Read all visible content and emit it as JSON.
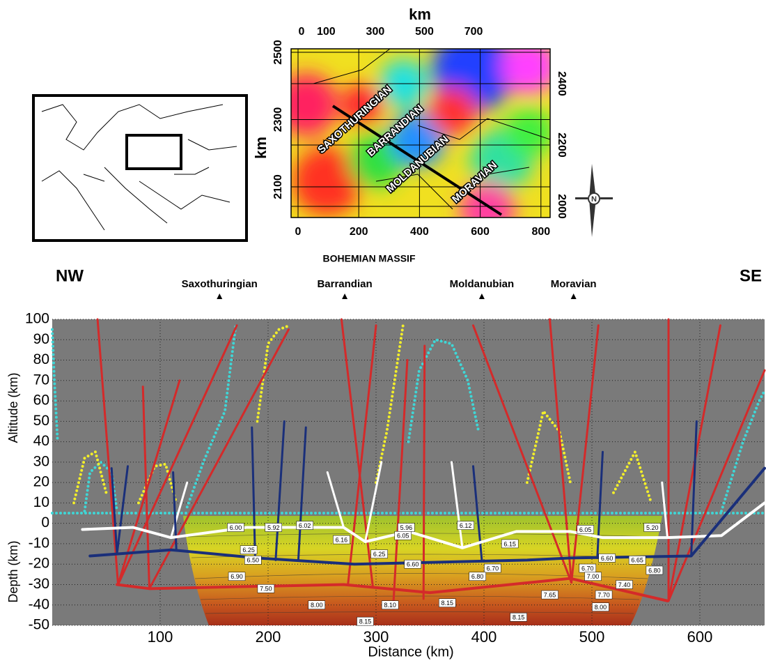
{
  "map": {
    "top_label": "km",
    "top_ticks": [
      0,
      100,
      300,
      500,
      700
    ],
    "bottom_ticks": [
      0,
      200,
      400,
      600,
      800
    ],
    "left_label": "km",
    "left_ticks": [
      2100,
      2300,
      2500
    ],
    "right_ticks": [
      2000,
      2200,
      2400
    ],
    "units": [
      "SAXOTHURINGIAN",
      "BARRANDIAN",
      "MOLDANUBIAN",
      "MORAVIAN"
    ],
    "north": "N",
    "caption": "BOHEMIAN MASSIF"
  },
  "chart_data": {
    "type": "profile",
    "x_label": "Distance (km)",
    "y_label_upper": "Altitude (km)",
    "y_label_lower": "Depth (km)",
    "left_label": "NW",
    "right_label": "SE",
    "xlim": [
      0,
      660
    ],
    "ylim": [
      -50,
      100
    ],
    "xticks": [
      100,
      200,
      300,
      400,
      500,
      600
    ],
    "yticks": [
      -50,
      -40,
      -30,
      -20,
      -10,
      0,
      10,
      20,
      30,
      40,
      50,
      60,
      70,
      80,
      90,
      100
    ],
    "grid": true,
    "markers": [
      {
        "label": "Saxothuringian",
        "x": 155
      },
      {
        "label": "Barrandian",
        "x": 271
      },
      {
        "label": "Moldanubian",
        "x": 398
      },
      {
        "label": "Moravian",
        "x": 483
      }
    ],
    "velocity_labels": {
      "x": [
        170,
        205,
        234,
        328,
        325,
        383,
        556,
        494,
        268,
        182,
        186,
        303,
        424,
        334,
        408,
        394,
        496,
        514,
        542,
        558,
        501,
        530,
        171,
        198,
        461,
        511,
        508,
        245,
        313,
        366,
        290,
        432
      ],
      "y": [
        -2,
        -2,
        -1,
        -2,
        -6,
        -1,
        -2,
        -3,
        -8,
        -13,
        -18,
        -15,
        -10,
        -20,
        -22,
        -26,
        -22,
        -17,
        -18,
        -23,
        -26,
        -30,
        -26,
        -32,
        -35,
        -35,
        -41,
        -40,
        -40,
        -39,
        -48,
        -46
      ],
      "values": [
        6,
        5.92,
        6.02,
        5.96,
        6.05,
        6.12,
        5.2,
        6.05,
        6.16,
        6.25,
        6.5,
        6.25,
        6.15,
        6.6,
        6.7,
        6.8,
        6.7,
        6.6,
        6.65,
        6.8,
        7,
        7.4,
        6.9,
        7.5,
        7.65,
        7.7,
        8,
        8,
        8.1,
        8.15,
        8.15,
        8.15
      ],
      "value_labels": [
        "6.00",
        "5.92",
        "6.02",
        "5.96",
        "6.05",
        "6.12",
        "5.20",
        "6.05",
        "6.16",
        "6.25",
        "6.50",
        "6.25",
        "6.15",
        "6.60",
        "6.70",
        "6.80",
        "6.70",
        "6.60",
        "6.65",
        "6.80",
        "7.00",
        "7.40",
        "6.90",
        "7.50",
        "7.65",
        "7.70",
        "8.00",
        "8.00",
        "8.10",
        "8.15",
        "8.15",
        "8.15"
      ]
    },
    "lines": [
      {
        "color": "#3fd6d6",
        "dotted": true,
        "x": [
          0,
          660
        ],
        "values": [
          5,
          5
        ]
      },
      {
        "color": "#3fd6d6",
        "dotted": true,
        "x": [
          30,
          35,
          45,
          55,
          60
        ],
        "values": [
          6,
          25,
          30,
          25,
          6
        ]
      },
      {
        "color": "#3fd6d6",
        "dotted": true,
        "x": [
          330,
          340,
          355,
          370,
          385,
          395
        ],
        "values": [
          40,
          75,
          90,
          88,
          70,
          45
        ]
      },
      {
        "color": "#3fd6d6",
        "dotted": true,
        "x": [
          125,
          140,
          160,
          170
        ],
        "values": [
          8,
          30,
          55,
          97
        ]
      },
      {
        "color": "#3fd6d6",
        "dotted": true,
        "x": [
          620,
          640,
          655,
          660
        ],
        "values": [
          6,
          40,
          60,
          65
        ]
      },
      {
        "color": "#3fd6d6",
        "dotted": true,
        "x": [
          0,
          2,
          5
        ],
        "values": [
          95,
          70,
          40
        ]
      },
      {
        "color": "#f2ee2a",
        "dotted": true,
        "x": [
          20,
          30,
          40,
          50
        ],
        "values": [
          10,
          32,
          35,
          15
        ]
      },
      {
        "color": "#f2ee2a",
        "dotted": true,
        "x": [
          80,
          95,
          105,
          115
        ],
        "values": [
          10,
          28,
          29,
          10
        ]
      },
      {
        "color": "#f2ee2a",
        "dotted": true,
        "x": [
          190,
          200,
          210,
          220
        ],
        "values": [
          50,
          88,
          95,
          97
        ]
      },
      {
        "color": "#f2ee2a",
        "dotted": true,
        "x": [
          300,
          310,
          325
        ],
        "values": [
          20,
          45,
          97
        ]
      },
      {
        "color": "#f2ee2a",
        "dotted": true,
        "x": [
          440,
          455,
          470,
          480
        ],
        "values": [
          20,
          55,
          45,
          20
        ]
      },
      {
        "color": "#f2ee2a",
        "dotted": true,
        "x": [
          520,
          540,
          555
        ],
        "values": [
          15,
          35,
          10
        ]
      },
      {
        "color": "#d42a2a",
        "width": 3,
        "x": [
          42,
          61
        ],
        "values": [
          100,
          -30
        ]
      },
      {
        "color": "#d42a2a",
        "width": 3,
        "x": [
          61,
          118
        ],
        "values": [
          -30,
          70
        ]
      },
      {
        "color": "#d42a2a",
        "width": 3,
        "x": [
          90,
          84
        ],
        "values": [
          -32,
          67
        ]
      },
      {
        "color": "#d42a2a",
        "width": 3,
        "x": [
          61,
          171
        ],
        "values": [
          -30,
          97
        ]
      },
      {
        "color": "#d42a2a",
        "width": 3,
        "x": [
          90,
          219
        ],
        "values": [
          -32,
          95
        ]
      },
      {
        "color": "#d42a2a",
        "width": 3,
        "x": [
          268,
          297
        ],
        "values": [
          100,
          -31
        ]
      },
      {
        "color": "#d42a2a",
        "width": 3,
        "x": [
          300,
          274
        ],
        "values": [
          97,
          -30
        ]
      },
      {
        "color": "#d42a2a",
        "width": 3,
        "x": [
          329,
          316
        ],
        "values": [
          80,
          -40
        ]
      },
      {
        "color": "#d42a2a",
        "width": 3,
        "x": [
          345,
          344
        ],
        "values": [
          87,
          -37
        ]
      },
      {
        "color": "#d42a2a",
        "width": 3,
        "x": [
          390,
          481
        ],
        "values": [
          97,
          -29
        ]
      },
      {
        "color": "#d42a2a",
        "width": 3,
        "x": [
          461,
          481
        ],
        "values": [
          100,
          -29
        ]
      },
      {
        "color": "#d42a2a",
        "width": 3,
        "x": [
          506,
          481
        ],
        "values": [
          97,
          -29
        ]
      },
      {
        "color": "#d42a2a",
        "width": 3,
        "x": [
          571,
          571
        ],
        "values": [
          100,
          -38
        ]
      },
      {
        "color": "#d42a2a",
        "width": 3,
        "x": [
          619,
          571
        ],
        "values": [
          97,
          -38
        ]
      },
      {
        "color": "#d42a2a",
        "width": 3,
        "x": [
          660,
          571
        ],
        "values": [
          75,
          -38
        ]
      },
      {
        "color": "#ffffff",
        "width": 3,
        "x": [
          110,
          125
        ],
        "values": [
          -7,
          20
        ]
      },
      {
        "color": "#ffffff",
        "width": 3,
        "x": [
          290,
          305
        ],
        "values": [
          -9,
          30
        ]
      },
      {
        "color": "#ffffff",
        "width": 3,
        "x": [
          380,
          370
        ],
        "values": [
          -12,
          30
        ]
      },
      {
        "color": "#ffffff",
        "width": 3,
        "x": [
          270,
          255
        ],
        "values": [
          -2,
          25
        ]
      },
      {
        "color": "#ffffff",
        "width": 3,
        "x": [
          570,
          565
        ],
        "values": [
          -7,
          20
        ]
      },
      {
        "color": "#1a2f7a",
        "width": 3,
        "x": [
          55,
          60
        ],
        "values": [
          27,
          -15
        ]
      },
      {
        "color": "#1a2f7a",
        "width": 3,
        "x": [
          70,
          60
        ],
        "values": [
          28,
          -15
        ]
      },
      {
        "color": "#1a2f7a",
        "width": 3,
        "x": [
          112,
          115
        ],
        "values": [
          25,
          -13
        ]
      },
      {
        "color": "#1a2f7a",
        "width": 3,
        "x": [
          185,
          188
        ],
        "values": [
          47,
          -17
        ]
      },
      {
        "color": "#1a2f7a",
        "width": 3,
        "x": [
          215,
          207
        ],
        "values": [
          50,
          -18
        ]
      },
      {
        "color": "#1a2f7a",
        "width": 3,
        "x": [
          235,
          228
        ],
        "values": [
          47,
          -18
        ]
      },
      {
        "color": "#1a2f7a",
        "width": 3,
        "x": [
          390,
          398
        ],
        "values": [
          28,
          -18
        ]
      },
      {
        "color": "#1a2f7a",
        "width": 3,
        "x": [
          510,
          505
        ],
        "values": [
          35,
          -17
        ]
      },
      {
        "color": "#1a2f7a",
        "width": 3,
        "x": [
          597,
          592
        ],
        "values": [
          50,
          -16
        ]
      },
      {
        "color": "#ffffff",
        "width": 4,
        "x": [
          28,
          75,
          110,
          180,
          270,
          290,
          330,
          380,
          430,
          480,
          510,
          570,
          620,
          660
        ],
        "values": [
          -3,
          -2,
          -7,
          -2,
          -2,
          -9,
          -4,
          -12,
          -4,
          -4,
          -7,
          -7,
          -6,
          10
        ]
      },
      {
        "color": "#1a2f7a",
        "width": 4,
        "x": [
          35,
          110,
          190,
          280,
          440,
          480,
          592,
          660
        ],
        "values": [
          -16,
          -13,
          -17,
          -20,
          -18,
          -17,
          -16,
          27
        ]
      },
      {
        "color": "#d42a2a",
        "width": 4,
        "x": [
          60,
          90,
          270,
          350,
          480,
          570
        ],
        "values": [
          -30,
          -32,
          -30,
          -34,
          -27,
          -38
        ]
      }
    ]
  }
}
